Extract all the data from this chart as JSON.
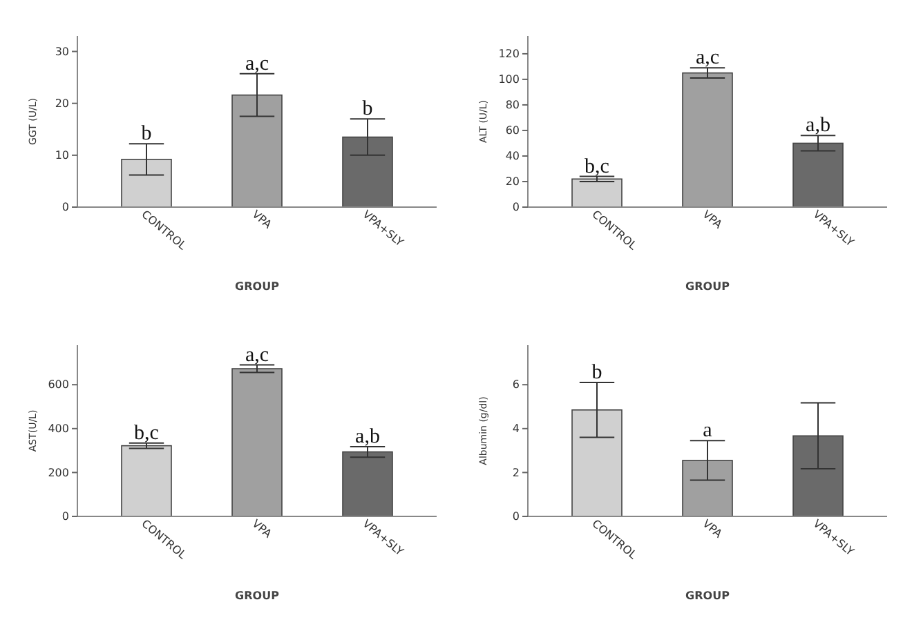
{
  "chart_data": [
    {
      "type": "bar",
      "categories": [
        "CONTROL",
        "VPA",
        "VPA+SLY"
      ],
      "values": [
        9.2,
        21.6,
        13.5
      ],
      "errors": [
        3,
        4.1,
        3.5
      ],
      "colors": [
        "#d0d0d0",
        "#a0a0a0",
        "#6a6a6a"
      ],
      "ylim": [
        0,
        33
      ],
      "yticks": [
        0,
        10,
        20,
        30
      ],
      "xlabel": "GROUP",
      "ylabel": "GGT (U/L)",
      "annotations": [
        {
          "text": "b",
          "x": "CONTROL",
          "y": 12.2
        },
        {
          "text": "a,c",
          "x": "VPA",
          "y": 25.7
        },
        {
          "text": "b",
          "x": "VPA+SLY",
          "y": 17
        }
      ]
    },
    {
      "type": "bar",
      "categories": [
        "CONTROL",
        "VPA",
        "VPA+SLY"
      ],
      "values": [
        22,
        105,
        50
      ],
      "errors": [
        2,
        4,
        6
      ],
      "colors": [
        "#d0d0d0",
        "#a0a0a0",
        "#6a6a6a"
      ],
      "ylim": [
        0,
        134
      ],
      "yticks": [
        0,
        20,
        40,
        60,
        80,
        100,
        120
      ],
      "xlabel": "GROUP",
      "ylabel": "ALT (U/L)",
      "annotations": [
        {
          "text": "b,c",
          "x": "CONTROL",
          "y": 24
        },
        {
          "text": "a,c",
          "x": "VPA",
          "y": 109
        },
        {
          "text": "a,b",
          "x": "VPA+SLY",
          "y": 56
        }
      ]
    },
    {
      "type": "bar",
      "categories": [
        "CONTROL",
        "VPA",
        "VPA+SLY"
      ],
      "values": [
        322,
        673,
        294
      ],
      "errors": [
        12,
        17,
        24
      ],
      "colors": [
        "#d0d0d0",
        "#a0a0a0",
        "#6a6a6a"
      ],
      "ylim": [
        0,
        780
      ],
      "yticks": [
        0,
        200,
        400,
        600
      ],
      "xlabel": "GROUP",
      "ylabel": "AST(U/L)",
      "annotations": [
        {
          "text": "b,c",
          "x": "CONTROL",
          "y": 334
        },
        {
          "text": "a,c",
          "x": "VPA",
          "y": 690
        },
        {
          "text": "a,b",
          "x": "VPA+SLY",
          "y": 318
        }
      ]
    },
    {
      "type": "bar",
      "categories": [
        "CONTROL",
        "VPA",
        "VPA+SLY"
      ],
      "values": [
        4.85,
        2.55,
        3.67
      ],
      "errors": [
        1.25,
        0.9,
        1.5
      ],
      "colors": [
        "#d0d0d0",
        "#a0a0a0",
        "#6a6a6a"
      ],
      "ylim": [
        0,
        7.8
      ],
      "yticks": [
        0,
        2,
        4,
        6
      ],
      "xlabel": "GROUP",
      "ylabel": "Albumin (g/dl)",
      "annotations": [
        {
          "text": "b",
          "x": "CONTROL",
          "y": 6.1
        },
        {
          "text": "a",
          "x": "VPA",
          "y": 3.45
        }
      ]
    }
  ]
}
